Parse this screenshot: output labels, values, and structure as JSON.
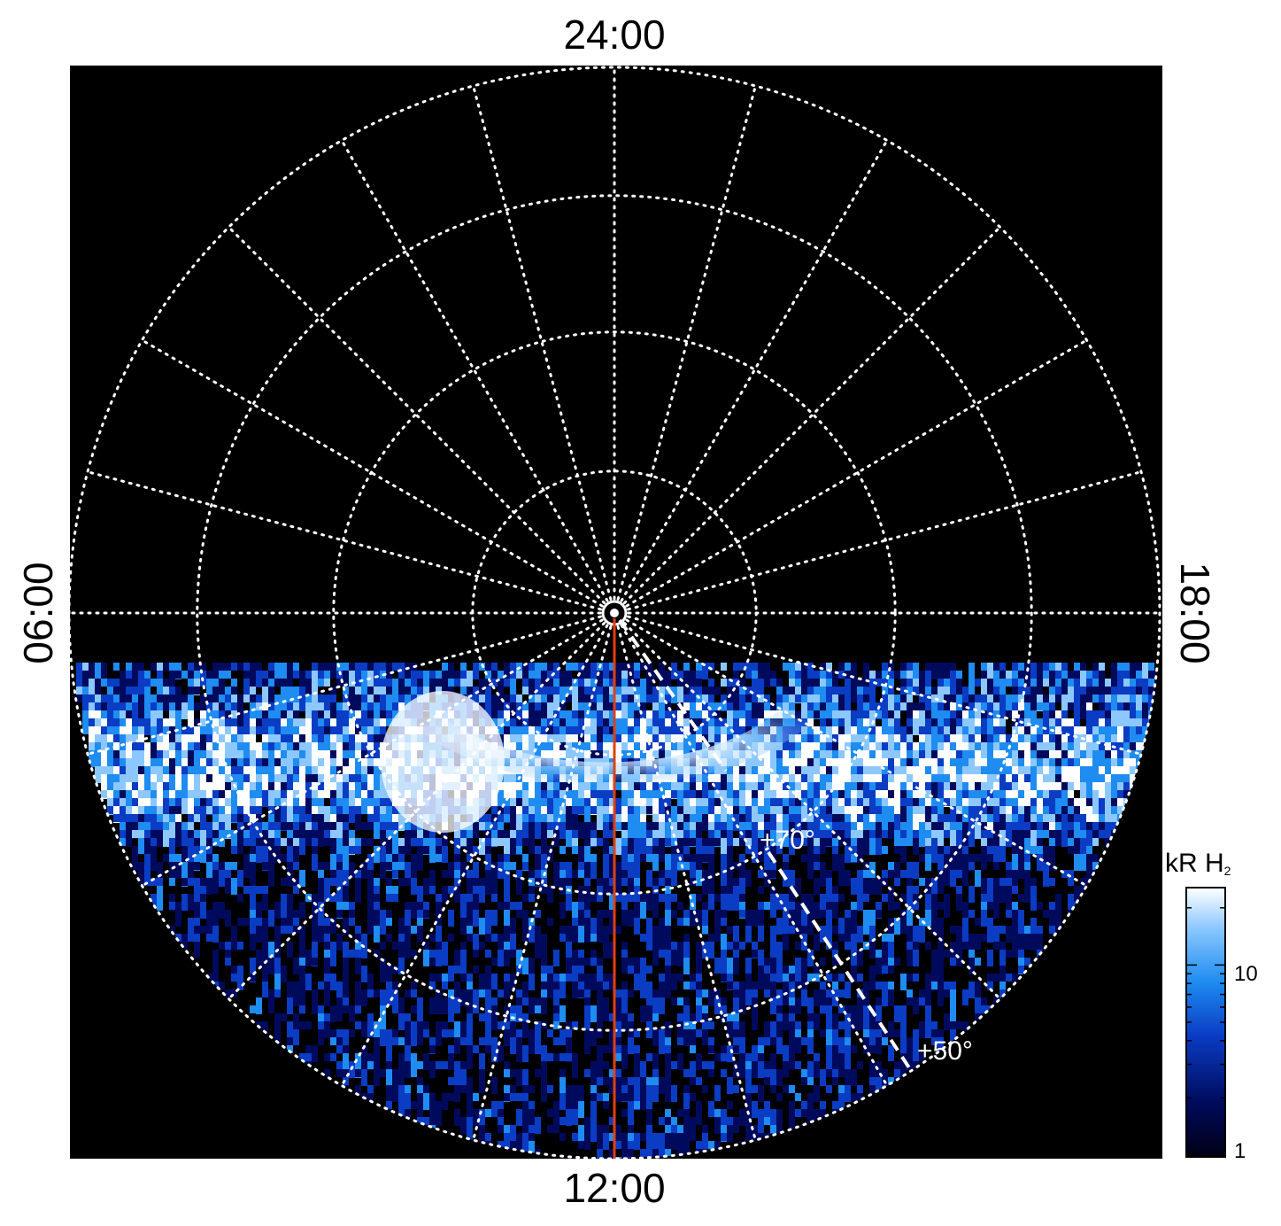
{
  "chart_data": {
    "type": "heatmap",
    "projection": "polar",
    "hour_labels": {
      "top": "24:00",
      "bottom": "12:00",
      "left": "06:00",
      "right": "18:00"
    },
    "latitude_rings": 4,
    "meridian_spacing_hours": 1,
    "background": "#000000",
    "grid": true,
    "grid_style": "dotted white",
    "colorbar": {
      "title": "kR H",
      "title_subscript": "2",
      "scale": "log",
      "range": [
        1,
        25
      ],
      "tick_labels": [
        "10",
        "1"
      ],
      "colors": [
        "#000014",
        "#000a5c",
        "#0a3cc4",
        "#1e8cf0",
        "#8cc8ff",
        "#ffffff"
      ]
    },
    "annotations": [
      {
        "text": "+70°"
      },
      {
        "text": "+50°"
      }
    ],
    "lines": [
      {
        "name": "",
        "color": "#e04010",
        "style": "solid",
        "meaning": "noon meridian"
      },
      {
        "name": "",
        "color": "#ffffff",
        "style": "dashed"
      }
    ]
  }
}
